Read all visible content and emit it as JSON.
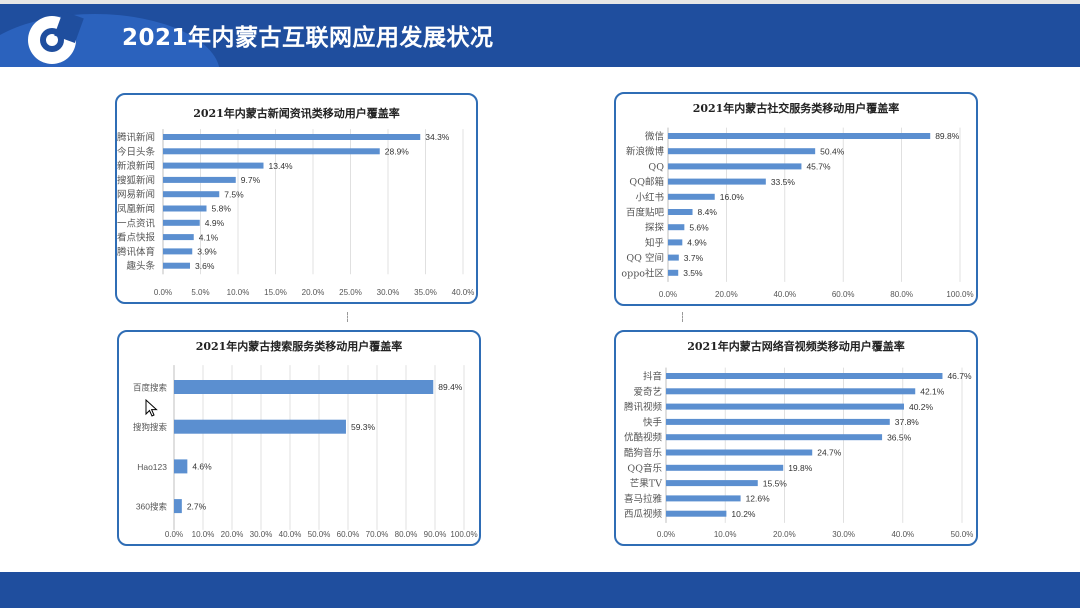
{
  "page": {
    "title": "2021年内蒙古互联网应用发展状况"
  },
  "colors": {
    "header": "#1f4e9e",
    "bar": "#5b8fd0",
    "panel_border": "#2f6db5",
    "grid": "#d9d9d9"
  },
  "chart_data": [
    {
      "id": "news",
      "type": "bar",
      "orientation": "horizontal",
      "title": "2021年内蒙古新闻资讯类移动用户覆盖率",
      "categories": [
        "腾讯新闻",
        "今日头条",
        "新浪新闻",
        "搜狐新闻",
        "网易新闻",
        "凤凰新闻",
        "一点资讯",
        "看点快报",
        "腾讯体育",
        "趣头条"
      ],
      "values": [
        34.3,
        28.9,
        13.4,
        9.7,
        7.5,
        5.8,
        4.9,
        4.1,
        3.9,
        3.6
      ],
      "value_labels": [
        "34.3%",
        "28.9%",
        "13.4%",
        "9.7%",
        "7.5%",
        "5.8%",
        "4.9%",
        "4.1%",
        "3.9%",
        "3.6%"
      ],
      "xlim": [
        0,
        40
      ],
      "ticks": [
        0,
        5,
        10,
        15,
        20,
        25,
        30,
        35,
        40
      ],
      "tick_labels": [
        "0.0%",
        "5.0%",
        "10.0%",
        "15.0%",
        "20.0%",
        "25.0%",
        "30.0%",
        "35.0%",
        "40.0%"
      ]
    },
    {
      "id": "social",
      "type": "bar",
      "orientation": "horizontal",
      "title": "2021年内蒙古社交服务类移动用户覆盖率",
      "categories": [
        "微信",
        "新浪微博",
        "QQ",
        "QQ邮箱",
        "小红书",
        "百度贴吧",
        "探探",
        "知乎",
        "QQ 空间",
        "oppo社区"
      ],
      "values": [
        89.8,
        50.4,
        45.7,
        33.5,
        16.0,
        8.4,
        5.6,
        4.9,
        3.7,
        3.5
      ],
      "value_labels": [
        "89.8%",
        "50.4%",
        "45.7%",
        "33.5%",
        "16.0%",
        "8.4%",
        "5.6%",
        "4.9%",
        "3.7%",
        "3.5%"
      ],
      "xlim": [
        0,
        100
      ],
      "ticks": [
        0,
        20,
        40,
        60,
        80,
        100
      ],
      "tick_labels": [
        "0.0%",
        "20.0%",
        "40.0%",
        "60.0%",
        "80.0%",
        "100.0%"
      ]
    },
    {
      "id": "search",
      "type": "bar",
      "orientation": "horizontal",
      "title": "2021年内蒙古搜索服务类移动用户覆盖率",
      "categories": [
        "百度搜索",
        "搜狗搜索",
        "Hao123",
        "360搜索"
      ],
      "values": [
        89.4,
        59.3,
        4.6,
        2.7
      ],
      "value_labels": [
        "89.4%",
        "59.3%",
        "4.6%",
        "2.7%"
      ],
      "xlim": [
        0,
        100
      ],
      "ticks": [
        0,
        10,
        20,
        30,
        40,
        50,
        60,
        70,
        80,
        90,
        100
      ],
      "tick_labels": [
        "0.0%",
        "10.0%",
        "20.0%",
        "30.0%",
        "40.0%",
        "50.0%",
        "60.0%",
        "70.0%",
        "80.0%",
        "90.0%",
        "100.0%"
      ]
    },
    {
      "id": "video",
      "type": "bar",
      "orientation": "horizontal",
      "title": "2021年内蒙古网络音视频类移动用户覆盖率",
      "categories": [
        "抖音",
        "爱奇艺",
        "腾讯视频",
        "快手",
        "优酷视频",
        "酷狗音乐",
        "QQ音乐",
        "芒果TV",
        "喜马拉雅",
        "西瓜视频"
      ],
      "values": [
        46.7,
        42.1,
        40.2,
        37.8,
        36.5,
        24.7,
        19.8,
        15.5,
        12.6,
        10.2
      ],
      "value_labels": [
        "46.7%",
        "42.1%",
        "40.2%",
        "37.8%",
        "36.5%",
        "24.7%",
        "19.8%",
        "15.5%",
        "12.6%",
        "10.2%"
      ],
      "xlim": [
        0,
        50
      ],
      "ticks": [
        0,
        10,
        20,
        30,
        40,
        50
      ],
      "tick_labels": [
        "0.0%",
        "10.0%",
        "20.0%",
        "30.0%",
        "40.0%",
        "50.0%"
      ]
    }
  ]
}
